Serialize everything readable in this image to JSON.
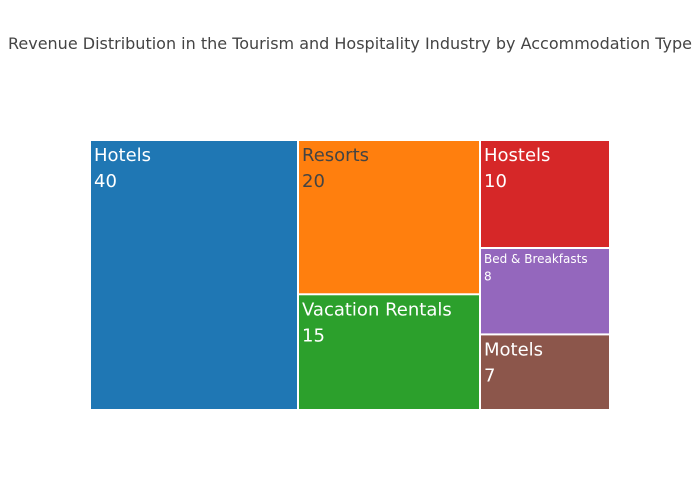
{
  "chart_data": {
    "type": "treemap",
    "title": "Revenue Distribution in the Tourism and Hospitality Industry by Accommodation Type",
    "tiles": [
      {
        "label": "Hotels",
        "value": 40,
        "color": "#1f77b4",
        "text_color": "#ffffff"
      },
      {
        "label": "Resorts",
        "value": 20,
        "color": "#ff7f0e",
        "text_color": "#444444"
      },
      {
        "label": "Vacation Rentals",
        "value": 15,
        "color": "#2ca02c",
        "text_color": "#ffffff"
      },
      {
        "label": "Hostels",
        "value": 10,
        "color": "#d62728",
        "text_color": "#ffffff"
      },
      {
        "label": "Bed & Breakfasts",
        "value": 8,
        "color": "#9467bd",
        "text_color": "#ffffff"
      },
      {
        "label": "Motels",
        "value": 7,
        "color": "#8c564b",
        "text_color": "#ffffff"
      }
    ]
  }
}
